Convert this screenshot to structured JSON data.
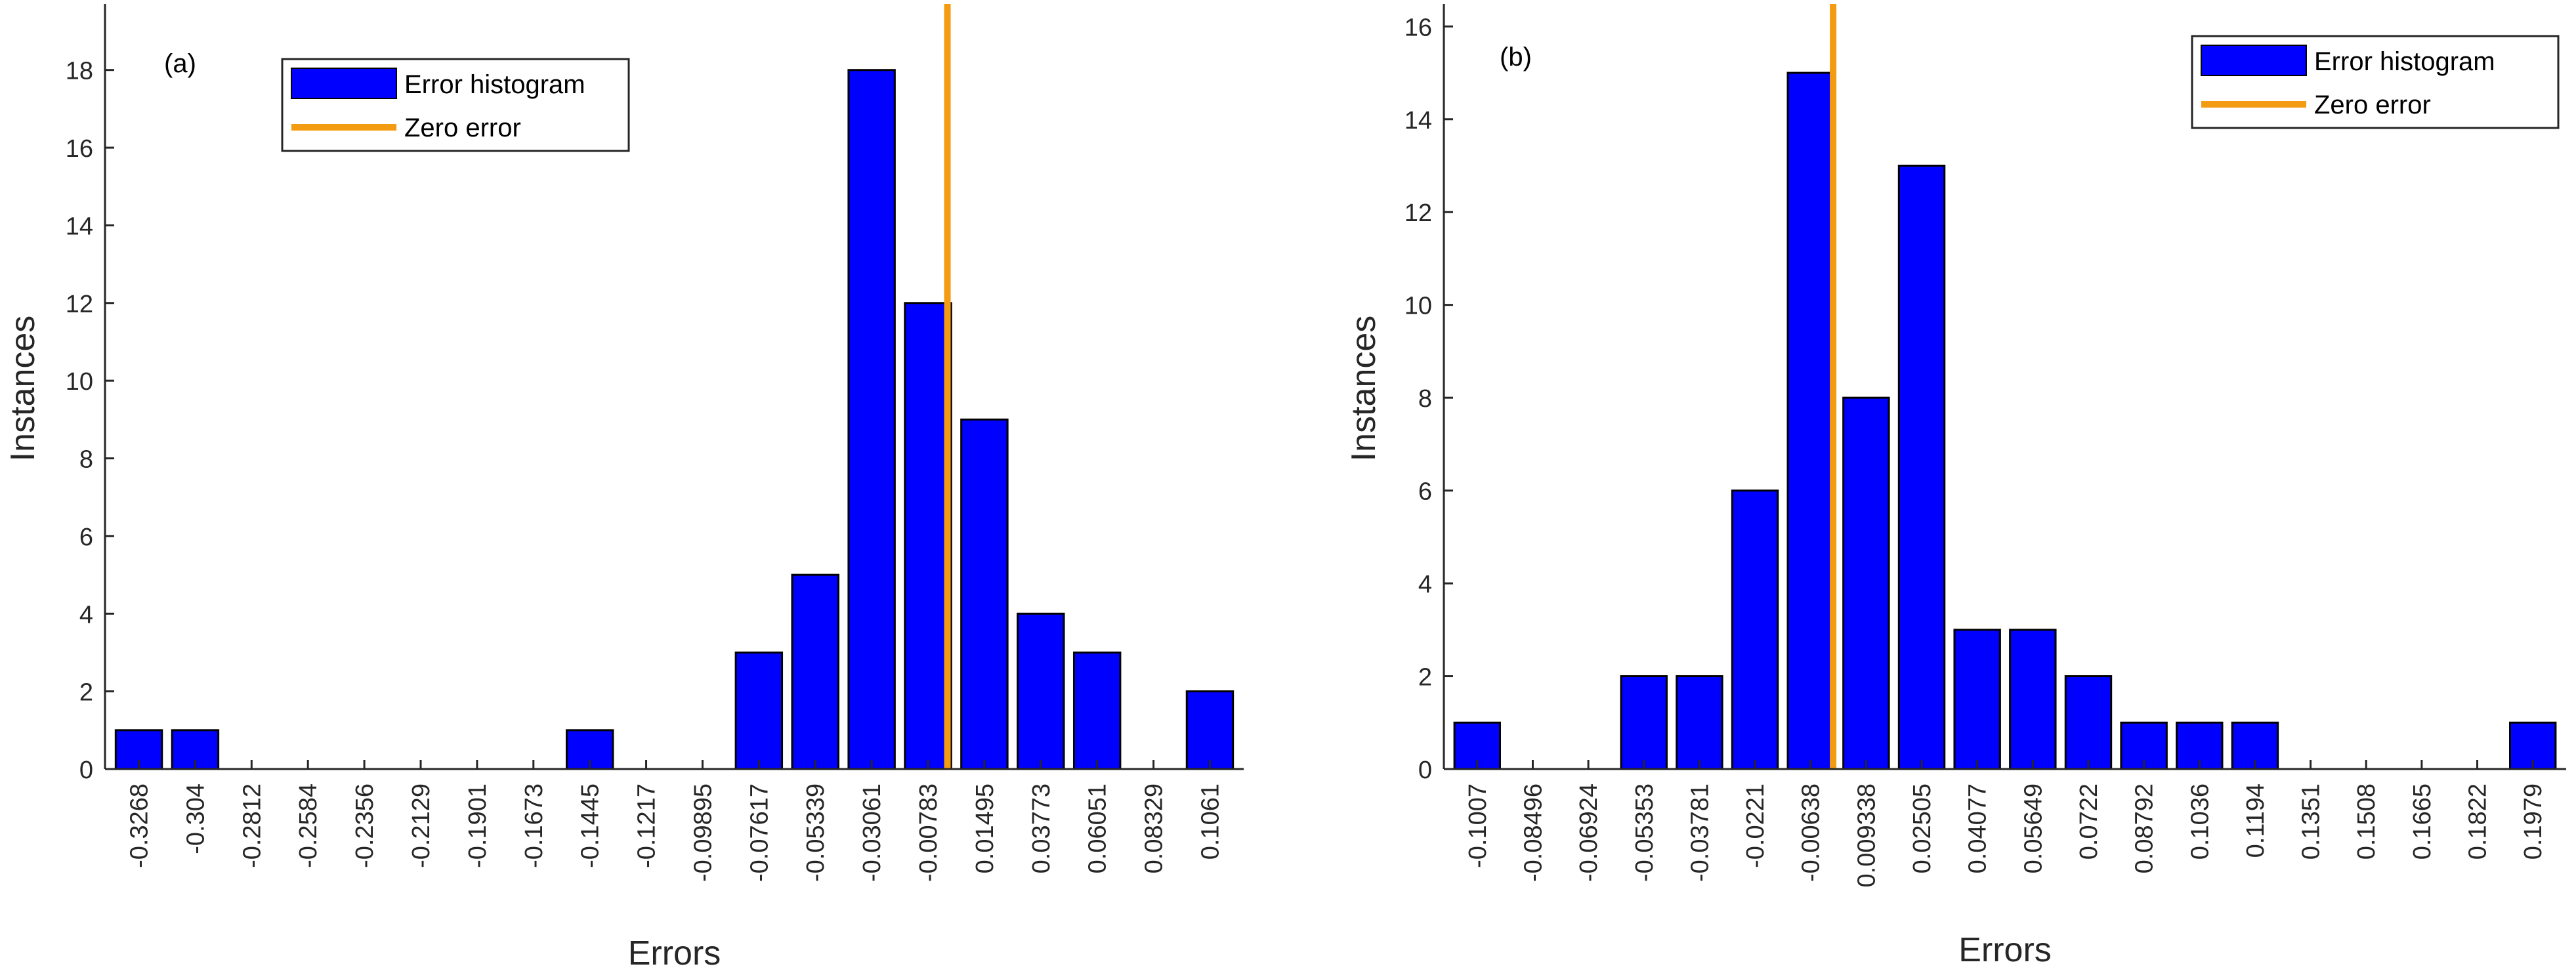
{
  "chart_data": [
    {
      "type": "bar",
      "panel_label": "(a)",
      "xlabel": "Errors",
      "ylabel": "Instances",
      "categories": [
        "-0.3268",
        "-0.304",
        "-0.2812",
        "-0.2584",
        "-0.2356",
        "-0.2129",
        "-0.1901",
        "-0.1673",
        "-0.1445",
        "-0.1217",
        "-0.09895",
        "-0.07617",
        "-0.05339",
        "-0.03061",
        "-0.00783",
        "0.01495",
        "0.03773",
        "0.06051",
        "0.08329",
        "0.1061"
      ],
      "values": [
        1,
        1,
        0,
        0,
        0,
        0,
        0,
        0,
        1,
        0,
        0,
        3,
        5,
        18,
        12,
        9,
        4,
        3,
        0,
        2
      ],
      "ylim": [
        0,
        19.6
      ],
      "yticks": [
        0,
        2,
        4,
        6,
        8,
        10,
        12,
        14,
        16,
        18
      ],
      "zero_error_x": 0,
      "legend": {
        "placement": "top-center",
        "histogram": "Error histogram",
        "zero": "Zero error"
      },
      "colors": {
        "bar": "#0000FF",
        "zero": "#F39C12"
      }
    },
    {
      "type": "bar",
      "panel_label": "(b)",
      "xlabel": "Errors",
      "ylabel": "Instances",
      "categories": [
        "-0.1007",
        "-0.08496",
        "-0.06924",
        "-0.05353",
        "-0.03781",
        "-0.0221",
        "-0.00638",
        "0.009338",
        "0.02505",
        "0.04077",
        "0.05649",
        "0.0722",
        "0.08792",
        "0.1036",
        "0.1194",
        "0.1351",
        "0.1508",
        "0.1665",
        "0.1822",
        "0.1979"
      ],
      "values": [
        1,
        0,
        0,
        2,
        2,
        6,
        15,
        8,
        13,
        3,
        3,
        2,
        1,
        1,
        1,
        0,
        0,
        0,
        0,
        1
      ],
      "ylim": [
        0,
        16.4
      ],
      "yticks": [
        0,
        2,
        4,
        6,
        8,
        10,
        12,
        14,
        16
      ],
      "zero_error_x": 0,
      "legend": {
        "placement": "top-right",
        "histogram": "Error histogram",
        "zero": "Zero error"
      },
      "colors": {
        "bar": "#0000FF",
        "zero": "#F39C12"
      }
    }
  ]
}
